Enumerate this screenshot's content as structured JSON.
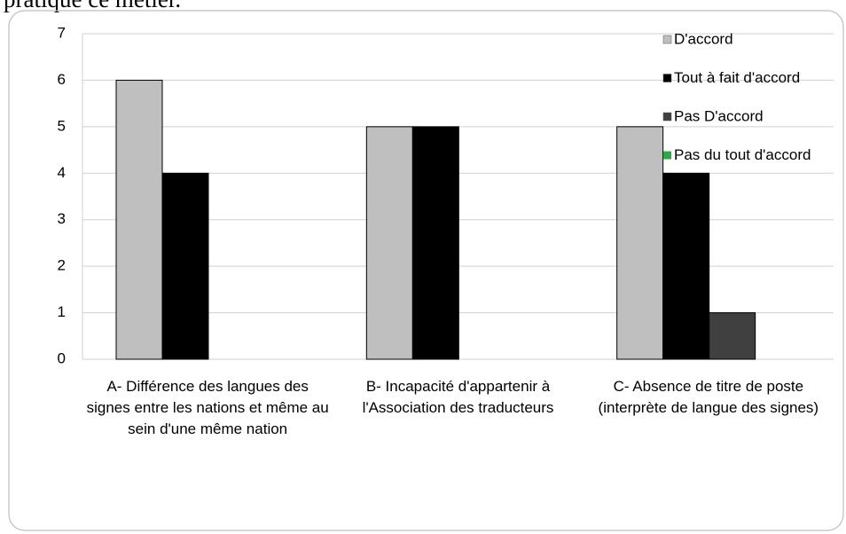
{
  "caption": "pratique ce métier.",
  "chart_data": {
    "type": "bar",
    "categories": [
      "A- Différence des langues des signes entre les nations et même au sein d'une même nation",
      "B- Incapacité d'appartenir à l'Association des traducteurs",
      "C- Absence de titre de poste (interprète de langue des signes)"
    ],
    "series": [
      {
        "name": "D'accord",
        "color": "#bfbfbf",
        "values": [
          6,
          5,
          5
        ]
      },
      {
        "name": "Tout à fait d'accord",
        "color": "#000000",
        "values": [
          4,
          5,
          4
        ]
      },
      {
        "name": "Pas D'accord",
        "color": "#404040",
        "values": [
          0,
          0,
          1
        ]
      },
      {
        "name": "Pas du tout d'accord",
        "color": "#2ea84a",
        "values": [
          0,
          0,
          0
        ]
      }
    ],
    "ylim": [
      0,
      7
    ],
    "yticks": [
      0,
      1,
      2,
      3,
      4,
      5,
      6,
      7
    ],
    "grid": true,
    "legend": "top-right"
  }
}
